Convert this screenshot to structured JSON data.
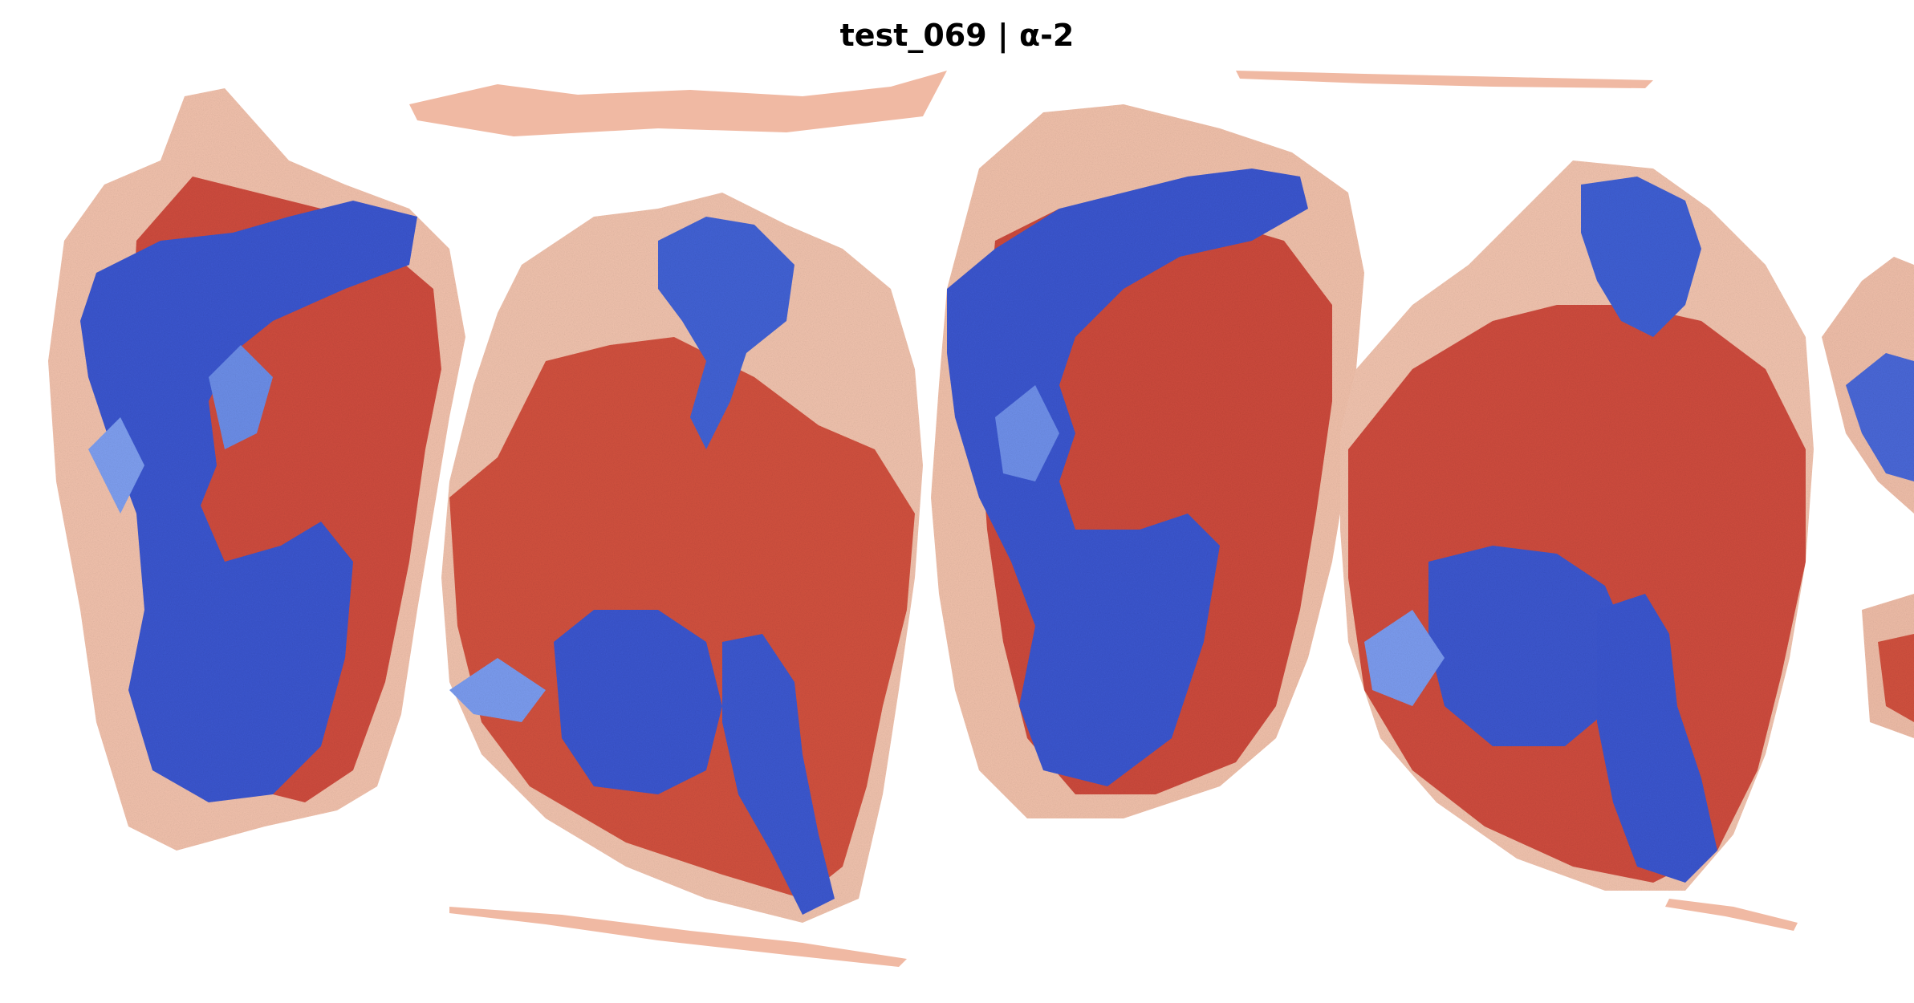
{
  "figure": {
    "title": "test_069 | α-2"
  },
  "image": {
    "description_colors": {
      "background": "#ffffff",
      "tissue_base": "#f2c3ad",
      "high_red": "#c8403a",
      "mid_red": "#de6a52",
      "low_blue": "#3e5ad1",
      "mid_blue": "#6d8eea"
    },
    "panels": 4
  }
}
